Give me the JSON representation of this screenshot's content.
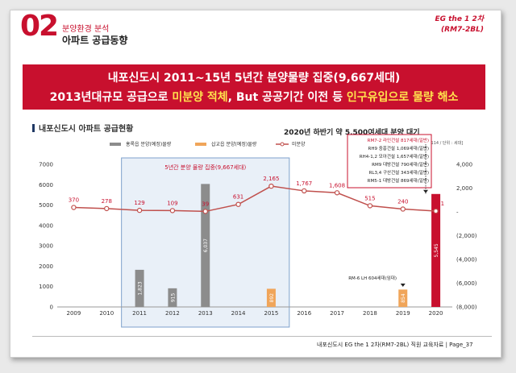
{
  "header": {
    "number": "02",
    "section_sub": "분양환경 분석",
    "section_title": "아파트 공급동향",
    "project_line1": "EG the 1 2차",
    "project_line2": "(RM7-2BL)"
  },
  "banner": {
    "line1": "내포신도시 2011~15년 5년간 분양물량 집중(9,667세대)",
    "line2_a": "2013년대규모 공급으로 ",
    "line2_b": "미분양 적체",
    "line2_c": ", But 공공기간 이전 등 ",
    "line2_d": "인구유입으로 물량 해소"
  },
  "chart_title": "내포신도시 아파트 공급현황",
  "headline": "2020년 하반기 약 5,500여세대 분양 대기",
  "source": "[자료: Reps114 / 단위 : 세대]",
  "footer": "내포신도시 EG the 1 2차(RM7-2BL)  직원 교육자료 | Page_37",
  "colors": {
    "brand": "#c8102e",
    "gray": "#8c8c8c",
    "orange": "#f0a55a",
    "line": "#c0504d"
  },
  "chart_data": {
    "type": "bar",
    "categories": [
      "2009",
      "2010",
      "2011",
      "2012",
      "2013",
      "2014",
      "2015",
      "2016",
      "2017",
      "2018",
      "2019",
      "2020"
    ],
    "ylim": [
      0,
      7000
    ],
    "y2lim": [
      -8000,
      4000
    ],
    "yticks": [
      "0",
      "1000",
      "2000",
      "3000",
      "4000",
      "5000",
      "6000",
      "7000"
    ],
    "y2ticks": [
      "(8,000)",
      "(6,000)",
      "(4,000)",
      "(2,000)",
      "-",
      "2,000",
      "4,000"
    ],
    "series": [
      {
        "name": "홍록읍 분양(예정)물량",
        "kind": "bar",
        "values": [
          null,
          null,
          1823,
          915,
          6037,
          null,
          null,
          null,
          null,
          null,
          null,
          null
        ],
        "labels": [
          "",
          "",
          "1,823",
          "915",
          "6,037",
          "",
          "",
          "",
          "",
          "",
          "",
          ""
        ]
      },
      {
        "name": "삽교읍 분양(예정)물량",
        "kind": "bar",
        "values": [
          null,
          null,
          null,
          null,
          null,
          null,
          892,
          null,
          null,
          null,
          854,
          null
        ],
        "labels": [
          "",
          "",
          "",
          "",
          "",
          "",
          "892",
          "",
          "",
          "",
          "854",
          ""
        ]
      },
      {
        "name": "",
        "kind": "bar",
        "values": [
          null,
          null,
          null,
          null,
          null,
          null,
          null,
          null,
          null,
          null,
          null,
          5545
        ],
        "labels": [
          "",
          "",
          "",
          "",
          "",
          "",
          "",
          "",
          "",
          "",
          "",
          "5,545"
        ]
      },
      {
        "name": "미분양",
        "kind": "line",
        "values": [
          370,
          278,
          129,
          109,
          39,
          631,
          2165,
          1767,
          1608,
          515,
          240,
          71
        ],
        "labels": [
          "370",
          "278",
          "129",
          "109",
          "39",
          "631",
          "2,165",
          "1,767",
          "1,608",
          "515",
          "240",
          "71"
        ]
      }
    ],
    "annotation_box": "5년간 분양 물량 집중(9,667세대)",
    "callouts": {
      "rm6": "RM-6 LH 604세대(임대)",
      "list": [
        "RM7-2 라인건설 817세대(일반)",
        "RH9 중흥건설 1,069세대(일반)",
        "RH4-1,2 모아건설 1,657세대(일반)",
        "RM9 대방건설 790세대(일반)",
        "RL3,4 구산건설 343세대(일반)",
        "RM5-1 대방건설 869세대(일반)"
      ]
    }
  }
}
